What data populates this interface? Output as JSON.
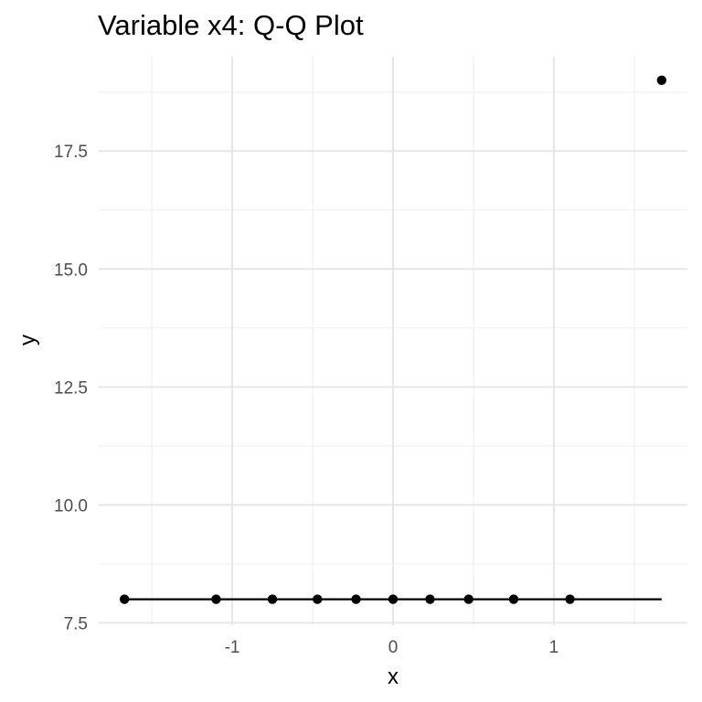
{
  "chart_data": {
    "type": "scatter",
    "title": "Variable x4: Q-Q Plot",
    "xlabel": "x",
    "ylabel": "y",
    "xlim": [
      -1.83,
      1.83
    ],
    "ylim": [
      7.45,
      19.5
    ],
    "x_ticks": [
      -1,
      0,
      1
    ],
    "x_tick_labels": [
      "-1",
      "0",
      "1"
    ],
    "x_minor_ticks": [
      -1.5,
      -0.5,
      0.5,
      1.5
    ],
    "y_ticks": [
      7.5,
      10.0,
      12.5,
      15.0,
      17.5
    ],
    "y_tick_labels": [
      "7.5",
      "10.0",
      "12.5",
      "15.0",
      "17.5"
    ],
    "y_minor_ticks": [
      8.75,
      11.25,
      13.75,
      16.25,
      18.75
    ],
    "grid": true,
    "series": [
      {
        "type": "scatter",
        "color": "#000000",
        "points": [
          {
            "x": -1.67,
            "y": 8
          },
          {
            "x": -1.1,
            "y": 8
          },
          {
            "x": -0.75,
            "y": 8
          },
          {
            "x": -0.47,
            "y": 8
          },
          {
            "x": -0.23,
            "y": 8
          },
          {
            "x": 0.0,
            "y": 8
          },
          {
            "x": 0.23,
            "y": 8
          },
          {
            "x": 0.47,
            "y": 8
          },
          {
            "x": 0.75,
            "y": 8
          },
          {
            "x": 1.1,
            "y": 8
          },
          {
            "x": 1.67,
            "y": 19
          }
        ]
      },
      {
        "type": "line",
        "color": "#000000",
        "points": [
          {
            "x": -1.67,
            "y": 8
          },
          {
            "x": 1.67,
            "y": 8
          }
        ]
      }
    ]
  }
}
